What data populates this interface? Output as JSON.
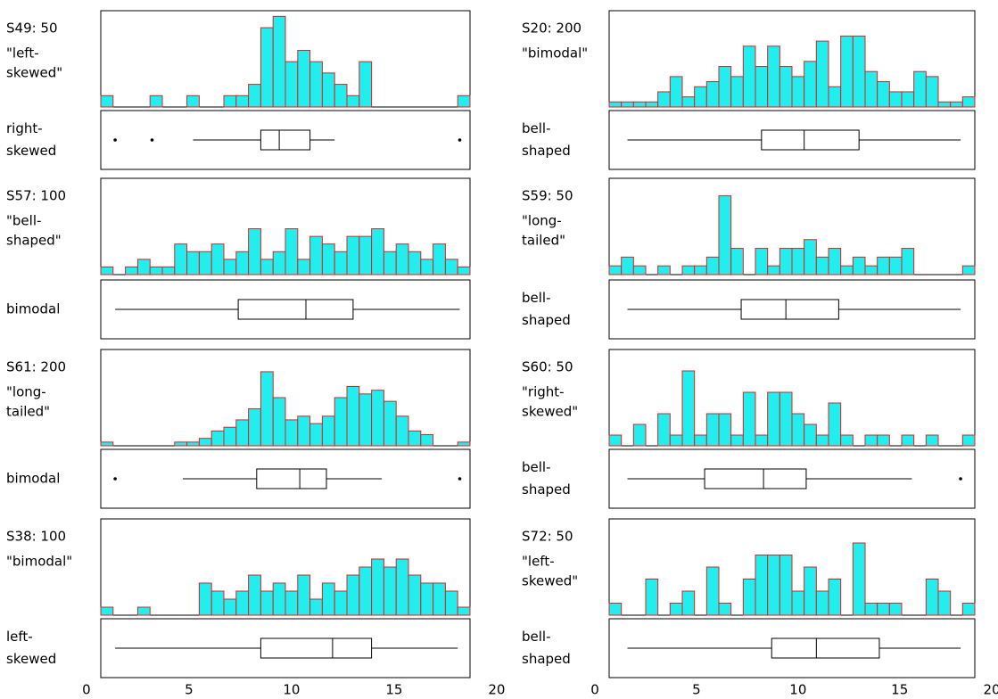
{
  "chart_data": [
    {
      "type": "histogram-box",
      "title": "S49: 50",
      "label": [
        "\"left-",
        "skewed\""
      ],
      "box_label": [
        "right-",
        "skewed"
      ],
      "bins": [
        0.7,
        1.3,
        1.9,
        2.5,
        3.1,
        3.7,
        4.3,
        4.9,
        5.5,
        6.1,
        6.7,
        7.3,
        7.9,
        8.5,
        9.1,
        9.7,
        10.3,
        10.9,
        11.5,
        12.1,
        12.7,
        13.3,
        13.9,
        14.5,
        15.1,
        15.7,
        16.3,
        16.9,
        17.5,
        18.1,
        18.7
      ],
      "values": [
        1,
        0,
        0,
        0,
        1,
        0,
        0,
        1,
        0,
        0,
        1,
        1,
        2,
        7,
        8,
        4,
        5,
        4,
        3,
        2,
        1,
        4,
        0,
        0,
        0,
        0,
        0,
        0,
        0,
        1
      ],
      "ylim": [
        0,
        8.5
      ],
      "xlim": [
        0.7,
        18.7
      ],
      "box": {
        "min": 5.2,
        "q1": 8.5,
        "median": 9.4,
        "q3": 10.9,
        "max": 12.1,
        "outliers": [
          1.4,
          3.2,
          18.2
        ]
      }
    },
    {
      "type": "histogram-box",
      "title": "S57: 100",
      "label": [
        "\"bell-",
        "shaped\""
      ],
      "box_label": [
        "bimodal"
      ],
      "bins": [
        0.7,
        1.3,
        1.9,
        2.5,
        3.1,
        3.7,
        4.3,
        4.9,
        5.5,
        6.1,
        6.7,
        7.3,
        7.9,
        8.5,
        9.1,
        9.7,
        10.3,
        10.9,
        11.5,
        12.1,
        12.7,
        13.3,
        13.9,
        14.5,
        15.1,
        15.7,
        16.3,
        16.9,
        17.5,
        18.1,
        18.7
      ],
      "values": [
        1,
        0,
        1,
        2,
        1,
        1,
        4,
        3,
        3,
        4,
        2,
        3,
        6,
        2,
        3,
        6,
        2,
        5,
        4,
        3,
        5,
        5,
        6,
        3,
        4,
        3,
        2,
        4,
        2,
        1
      ],
      "ylim": [
        0,
        12.6
      ],
      "xlim": [
        0.7,
        18.7
      ],
      "box": {
        "min": 1.4,
        "q1": 7.4,
        "median": 10.7,
        "q3": 13.0,
        "max": 18.2,
        "outliers": []
      }
    },
    {
      "type": "histogram-box",
      "title": "S61: 200",
      "label": [
        "\"long-",
        "tailed\""
      ],
      "box_label": [
        "bimodal"
      ],
      "bins": [
        0.7,
        1.3,
        1.9,
        2.5,
        3.1,
        3.7,
        4.3,
        4.9,
        5.5,
        6.1,
        6.7,
        7.3,
        7.9,
        8.5,
        9.1,
        9.7,
        10.3,
        10.9,
        11.5,
        12.1,
        12.7,
        13.3,
        13.9,
        14.5,
        15.1,
        15.7,
        16.3,
        16.9,
        17.5,
        18.1,
        18.7
      ],
      "values": [
        1,
        0,
        0,
        0,
        0,
        0,
        1,
        1,
        2,
        4,
        5,
        7,
        10,
        20,
        13,
        7,
        8,
        6,
        8,
        13,
        16,
        14,
        15,
        12,
        8,
        4,
        3,
        0,
        0,
        1
      ],
      "ylim": [
        0,
        26
      ],
      "xlim": [
        0.7,
        18.7
      ],
      "box": {
        "min": 4.7,
        "q1": 8.3,
        "median": 10.4,
        "q3": 11.7,
        "max": 14.4,
        "outliers": [
          1.4,
          18.2
        ]
      }
    },
    {
      "type": "histogram-box",
      "title": "S38: 100",
      "label": [
        "\"bimodal\""
      ],
      "box_label": [
        "left-",
        "skewed"
      ],
      "bins": [
        0.7,
        1.3,
        1.9,
        2.5,
        3.1,
        3.7,
        4.3,
        4.9,
        5.5,
        6.1,
        6.7,
        7.3,
        7.9,
        8.5,
        9.1,
        9.7,
        10.3,
        10.9,
        11.5,
        12.1,
        12.7,
        13.3,
        13.9,
        14.5,
        15.1,
        15.7,
        16.3,
        16.9,
        17.5,
        18.1,
        18.7
      ],
      "values": [
        1,
        0,
        0,
        1,
        0,
        0,
        0,
        0,
        4,
        3,
        2,
        3,
        5,
        3,
        4,
        3,
        5,
        2,
        4,
        3,
        5,
        6,
        7,
        6,
        7,
        5,
        4,
        4,
        3,
        1
      ],
      "ylim": [
        0,
        12
      ],
      "xlim": [
        0.7,
        18.7
      ],
      "box": {
        "min": 1.4,
        "q1": 8.5,
        "median": 12.0,
        "q3": 13.9,
        "max": 18.1,
        "outliers": []
      },
      "xticks": [
        0,
        5,
        10,
        15,
        20
      ]
    },
    {
      "type": "histogram-box",
      "title": "S20: 200",
      "label": [
        "\"bimodal\""
      ],
      "box_label": [
        "bell-",
        "shaped"
      ],
      "bins": [
        0.7,
        1.3,
        1.9,
        2.5,
        3.1,
        3.7,
        4.3,
        4.9,
        5.5,
        6.1,
        6.7,
        7.3,
        7.9,
        8.5,
        9.1,
        9.7,
        10.3,
        10.9,
        11.5,
        12.1,
        12.7,
        13.3,
        13.9,
        14.5,
        15.1,
        15.7,
        16.3,
        16.9,
        17.5,
        18.1,
        18.7
      ],
      "values": [
        1,
        1,
        1,
        1,
        3,
        6,
        2,
        4,
        5,
        8,
        6,
        12,
        8,
        12,
        8,
        6,
        9,
        13,
        4,
        14,
        14,
        7,
        5,
        3,
        3,
        7,
        6,
        1,
        1,
        2
      ],
      "ylim": [
        0,
        19
      ],
      "xlim": [
        0.7,
        18.7
      ],
      "box": {
        "min": 1.6,
        "q1": 8.2,
        "median": 10.3,
        "q3": 13.0,
        "max": 18.0,
        "outliers": []
      }
    },
    {
      "type": "histogram-box",
      "title": "S59: 50",
      "label": [
        "\"long-",
        "tailed\""
      ],
      "box_label": [
        "bell-",
        "shaped"
      ],
      "bins": [
        0.7,
        1.3,
        1.9,
        2.5,
        3.1,
        3.7,
        4.3,
        4.9,
        5.5,
        6.1,
        6.7,
        7.3,
        7.9,
        8.5,
        9.1,
        9.7,
        10.3,
        10.9,
        11.5,
        12.1,
        12.7,
        13.3,
        13.9,
        14.5,
        15.1,
        15.7,
        16.3,
        16.9,
        17.5,
        18.1,
        18.7
      ],
      "values": [
        1,
        2,
        1,
        0,
        1,
        0,
        1,
        1,
        2,
        9,
        3,
        0,
        3,
        1,
        3,
        3,
        4,
        2,
        3,
        1,
        2,
        1,
        2,
        2,
        3,
        0,
        0,
        0,
        0,
        1
      ],
      "ylim": [
        0,
        11
      ],
      "xlim": [
        0.7,
        18.7
      ],
      "box": {
        "min": 1.6,
        "q1": 7.2,
        "median": 9.4,
        "q3": 12.0,
        "max": 18.0,
        "outliers": []
      }
    },
    {
      "type": "histogram-box",
      "title": "S60: 50",
      "label": [
        "\"right-",
        "skewed\""
      ],
      "box_label": [
        "bell-",
        "shaped"
      ],
      "bins": [
        0.7,
        1.3,
        1.9,
        2.5,
        3.1,
        3.7,
        4.3,
        4.9,
        5.5,
        6.1,
        6.7,
        7.3,
        7.9,
        8.5,
        9.1,
        9.7,
        10.3,
        10.9,
        11.5,
        12.1,
        12.7,
        13.3,
        13.9,
        14.5,
        15.1,
        15.7,
        16.3,
        16.9,
        17.5,
        18.1,
        18.7
      ],
      "values": [
        1,
        0,
        2,
        0,
        3,
        1,
        7,
        1,
        3,
        3,
        1,
        5,
        1,
        5,
        5,
        3,
        2,
        1,
        4,
        1,
        0,
        1,
        1,
        0,
        1,
        0,
        1,
        0,
        0,
        1
      ],
      "ylim": [
        0,
        9
      ],
      "xlim": [
        0.7,
        18.7
      ],
      "box": {
        "min": 1.6,
        "q1": 5.4,
        "median": 8.3,
        "q3": 10.4,
        "max": 15.6,
        "outliers": [
          18.0
        ]
      }
    },
    {
      "type": "histogram-box",
      "title": "S72: 50",
      "label": [
        "\"left-",
        "skewed\""
      ],
      "box_label": [
        "bell-",
        "shaped"
      ],
      "bins": [
        0.7,
        1.3,
        1.9,
        2.5,
        3.1,
        3.7,
        4.3,
        4.9,
        5.5,
        6.1,
        6.7,
        7.3,
        7.9,
        8.5,
        9.1,
        9.7,
        10.3,
        10.9,
        11.5,
        12.1,
        12.7,
        13.3,
        13.9,
        14.5,
        15.1,
        15.7,
        16.3,
        16.9,
        17.5,
        18.1,
        18.7
      ],
      "values": [
        1,
        0,
        0,
        3,
        0,
        1,
        2,
        0,
        4,
        1,
        0,
        3,
        5,
        5,
        5,
        2,
        4,
        2,
        3,
        0,
        6,
        1,
        1,
        1,
        0,
        0,
        3,
        2,
        0,
        1
      ],
      "ylim": [
        0,
        8
      ],
      "xlim": [
        0.7,
        18.7
      ],
      "box": {
        "min": 1.6,
        "q1": 8.7,
        "median": 10.9,
        "q3": 14.0,
        "max": 18.0,
        "outliers": []
      },
      "xticks": [
        0,
        5,
        10,
        15,
        20
      ]
    }
  ]
}
